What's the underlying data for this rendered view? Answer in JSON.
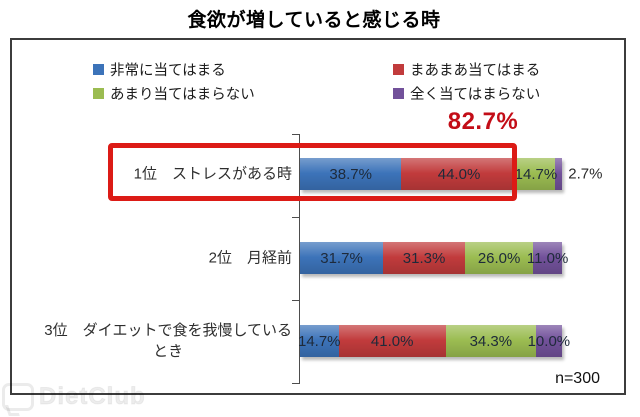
{
  "title": "食欲が増していると感じる時",
  "legend": [
    {
      "label": "非常に当てはまる",
      "color": "#3c73b9"
    },
    {
      "label": "まあまあ当てはまる",
      "color": "#c13b3c"
    },
    {
      "label": "あまり当てはまらない",
      "color": "#9bbc51"
    },
    {
      "label": "全く当てはまらない",
      "color": "#72519a"
    }
  ],
  "annotation": {
    "value": "82.7%"
  },
  "sample_size": "n=300",
  "watermark": "DietClub",
  "chart_data": {
    "type": "bar",
    "orientation": "horizontal",
    "stacked": true,
    "unit": "%",
    "xlim": [
      0,
      100
    ],
    "grid": false,
    "legend_position": "top",
    "categories": [
      "1位　ストレスがある時",
      "2位　月経前",
      "3位　ダイエットで食を我慢しているとき"
    ],
    "categories_lines": [
      [
        "1位　ストレスがある時"
      ],
      [
        "2位　月経前"
      ],
      [
        "3位　ダイエットで食を我慢している",
        "とき"
      ]
    ],
    "series": [
      {
        "name": "非常に当てはまる",
        "color": "#3c73b9",
        "values": [
          38.7,
          31.7,
          14.7
        ]
      },
      {
        "name": "まあまあ当てはまる",
        "color": "#c13b3c",
        "values": [
          44.0,
          31.3,
          41.0
        ]
      },
      {
        "name": "あまり当てはまらない",
        "color": "#9bbc51",
        "values": [
          14.7,
          26.0,
          34.3
        ]
      },
      {
        "name": "全く当てはまらない",
        "color": "#72519a",
        "values": [
          2.7,
          11.0,
          10.0
        ]
      }
    ],
    "highlight": {
      "row": 0,
      "annotation_value": "82.7%",
      "annotation_note": "sum of first two segments of row 1"
    }
  }
}
